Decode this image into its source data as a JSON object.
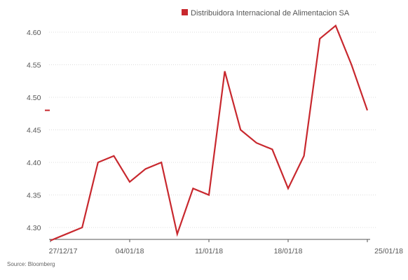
{
  "chart_data": {
    "type": "line",
    "title": "",
    "xlabel": "",
    "ylabel": "",
    "ylim": [
      4.28,
      4.62
    ],
    "yticks": [
      4.3,
      4.35,
      4.4,
      4.45,
      4.5,
      4.55,
      4.6
    ],
    "ytick_labels": [
      "4.30",
      "4.35",
      "4.40",
      "4.45",
      "4.50",
      "4.55",
      "4.60"
    ],
    "x_tick_labels": [
      "27/12/17",
      "04/01/18",
      "11/01/18",
      "18/01/18",
      "25/01/18"
    ],
    "x_tick_index": [
      0,
      5,
      10,
      15,
      20
    ],
    "grid": "horizontal dotted",
    "legend_position": "top-right",
    "last_value_marker": 4.48,
    "x": [
      0,
      1,
      2,
      3,
      4,
      5,
      6,
      7,
      8,
      9,
      10,
      11,
      12,
      13,
      14,
      15,
      16,
      17,
      18,
      19,
      20
    ],
    "series": [
      {
        "name": "Distribuidora Internacional de Alimentacion SA",
        "color": "#c8282e",
        "values": [
          4.28,
          4.29,
          4.3,
          4.4,
          4.41,
          4.37,
          4.39,
          4.4,
          4.29,
          4.36,
          4.35,
          4.54,
          4.45,
          4.43,
          4.42,
          4.36,
          4.41,
          4.59,
          4.61,
          4.55,
          4.48
        ]
      }
    ],
    "source": "Source: Bloomberg"
  }
}
